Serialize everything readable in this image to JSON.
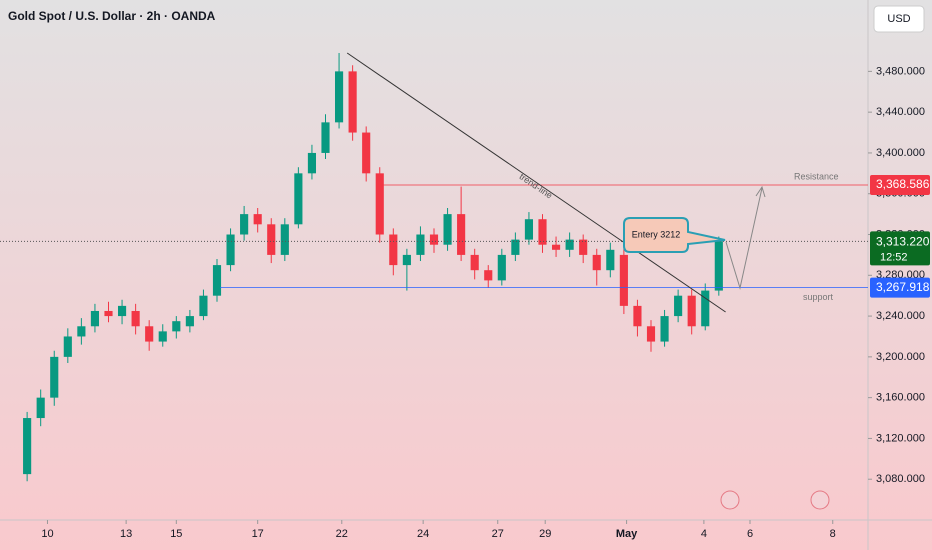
{
  "chart_data": {
    "type": "candlestick",
    "title": "Gold Spot / U.S. Dollar · 2h · OANDA",
    "currency": "USD",
    "x": [
      2,
      3,
      4,
      5,
      6,
      7,
      8,
      9,
      10,
      11,
      12,
      13,
      14,
      15,
      16,
      17,
      18,
      19,
      20,
      21,
      22,
      23,
      24,
      25,
      26,
      27,
      28,
      29,
      30,
      31,
      32,
      33,
      34,
      35,
      36,
      37,
      38,
      39,
      40,
      41,
      42,
      43,
      44,
      45,
      46,
      47,
      48,
      49,
      50,
      51,
      52,
      53
    ],
    "open": [
      3085,
      3140,
      3160,
      3200,
      3220,
      3230,
      3245,
      3240,
      3245,
      3230,
      3215,
      3225,
      3230,
      3240,
      3260,
      3290,
      3320,
      3340,
      3330,
      3300,
      3330,
      3380,
      3400,
      3430,
      3480,
      3420,
      3380,
      3320,
      3290,
      3300,
      3320,
      3310,
      3340,
      3300,
      3285,
      3275,
      3300,
      3315,
      3335,
      3310,
      3305,
      3315,
      3300,
      3285,
      3300,
      3250,
      3230,
      3215,
      3240,
      3260,
      3230,
      3265
    ],
    "high": [
      3146,
      3168,
      3206,
      3228,
      3238,
      3252,
      3254,
      3256,
      3252,
      3236,
      3232,
      3240,
      3246,
      3266,
      3296,
      3326,
      3348,
      3346,
      3336,
      3336,
      3386,
      3408,
      3438,
      3498,
      3486,
      3426,
      3386,
      3326,
      3306,
      3328,
      3326,
      3346,
      3367,
      3306,
      3290,
      3306,
      3322,
      3342,
      3340,
      3318,
      3322,
      3320,
      3306,
      3312,
      3306,
      3256,
      3236,
      3246,
      3266,
      3266,
      3272,
      3318
    ],
    "low": [
      3078,
      3132,
      3152,
      3194,
      3212,
      3224,
      3234,
      3232,
      3222,
      3206,
      3210,
      3218,
      3224,
      3236,
      3254,
      3284,
      3314,
      3322,
      3292,
      3294,
      3326,
      3374,
      3394,
      3424,
      3412,
      3372,
      3312,
      3280,
      3265,
      3294,
      3302,
      3304,
      3294,
      3276,
      3268,
      3270,
      3294,
      3310,
      3302,
      3298,
      3298,
      3292,
      3270,
      3278,
      3242,
      3220,
      3205,
      3210,
      3234,
      3222,
      3226,
      3260
    ],
    "close": [
      3140,
      3160,
      3200,
      3220,
      3230,
      3245,
      3240,
      3250,
      3230,
      3215,
      3225,
      3235,
      3240,
      3260,
      3290,
      3320,
      3340,
      3330,
      3300,
      3330,
      3380,
      3400,
      3430,
      3480,
      3420,
      3380,
      3320,
      3290,
      3300,
      3320,
      3310,
      3340,
      3300,
      3285,
      3275,
      3300,
      3315,
      3335,
      3310,
      3305,
      3315,
      3300,
      3285,
      3305,
      3250,
      3230,
      3215,
      3240,
      3260,
      3230,
      3265,
      3313.22
    ],
    "up_color": "#089981",
    "down_color": "#f23645",
    "xlim": [
      0,
      64
    ],
    "xticks": [
      {
        "value": 3.5,
        "label": "10"
      },
      {
        "value": 9.3,
        "label": "13"
      },
      {
        "value": 13,
        "label": "15"
      },
      {
        "value": 19,
        "label": "17"
      },
      {
        "value": 25.2,
        "label": "22"
      },
      {
        "value": 31.2,
        "label": "24"
      },
      {
        "value": 36.7,
        "label": "27"
      },
      {
        "value": 40.2,
        "label": "29"
      },
      {
        "value": 46.2,
        "label": "May"
      },
      {
        "value": 51.9,
        "label": "4"
      },
      {
        "value": 55.3,
        "label": "6"
      },
      {
        "value": 61.4,
        "label": "8"
      }
    ],
    "ylim": [
      3040,
      3550
    ],
    "yticks": [
      {
        "value": 3080,
        "label": "3,080.000"
      },
      {
        "value": 3120,
        "label": "3,120.000"
      },
      {
        "value": 3160,
        "label": "3,160.000"
      },
      {
        "value": 3200,
        "label": "3,200.000"
      },
      {
        "value": 3240,
        "label": "3,240.000"
      },
      {
        "value": 3280,
        "label": "3,280.000"
      },
      {
        "value": 3320,
        "label": "3,320.000"
      },
      {
        "value": 3360,
        "label": "3,360.000"
      },
      {
        "value": 3400,
        "label": "3,400.000"
      },
      {
        "value": 3440,
        "label": "3,440.000"
      },
      {
        "value": 3480,
        "label": "3,480.000"
      }
    ],
    "levels": [
      {
        "name": "Resistance",
        "value": 3368.586,
        "value_label": "3,368.586",
        "color": "#f23645"
      },
      {
        "name": "support",
        "value": 3267.918,
        "value_label": "3,267.918",
        "color": "#2962ff"
      }
    ],
    "current": {
      "value": 3313.22,
      "value_label": "3,313.220",
      "countdown": "12:52",
      "color": "#0b6b22"
    },
    "trend_line": {
      "name": "trend-line",
      "x": [
        25.6,
        53.5
      ],
      "y": [
        3498,
        3244
      ]
    },
    "entry_note": "Entery 3212"
  }
}
